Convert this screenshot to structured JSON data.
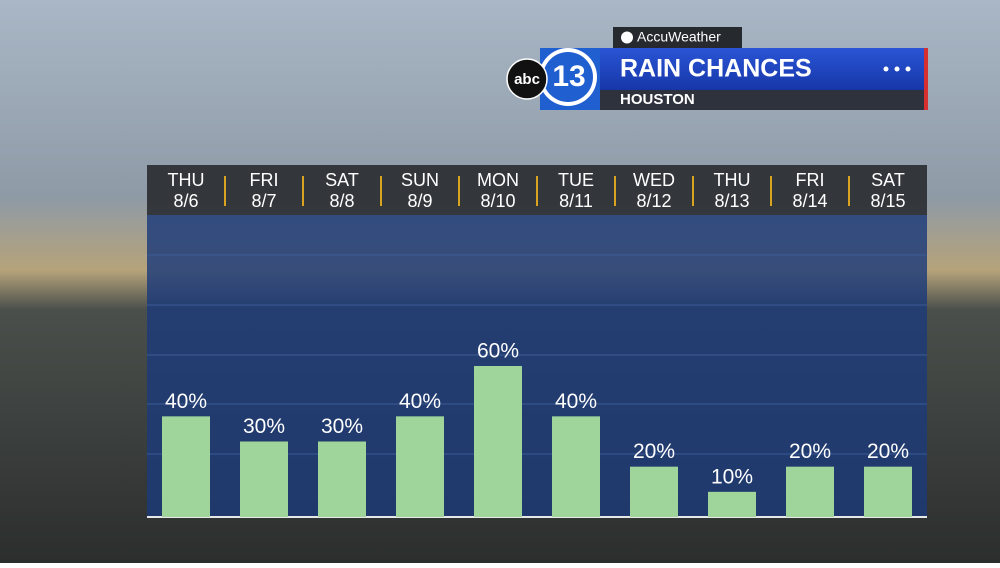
{
  "branding": {
    "provider": "AccuWeather",
    "network": "abc",
    "channel": "13"
  },
  "chart_data": {
    "type": "bar",
    "title": "RAIN CHANCES",
    "subtitle": "HOUSTON",
    "day_labels": [
      "THU",
      "FRI",
      "SAT",
      "SUN",
      "MON",
      "TUE",
      "WED",
      "THU",
      "FRI",
      "SAT"
    ],
    "categories": [
      "8/6",
      "8/7",
      "8/8",
      "8/9",
      "8/10",
      "8/11",
      "8/12",
      "8/13",
      "8/14",
      "8/15"
    ],
    "values": [
      40,
      30,
      30,
      40,
      60,
      40,
      20,
      10,
      20,
      20
    ],
    "value_labels": [
      "40%",
      "30%",
      "30%",
      "40%",
      "60%",
      "40%",
      "20%",
      "10%",
      "20%",
      "20%"
    ],
    "color": "#9fd49b",
    "ylim": [
      0,
      120
    ]
  }
}
